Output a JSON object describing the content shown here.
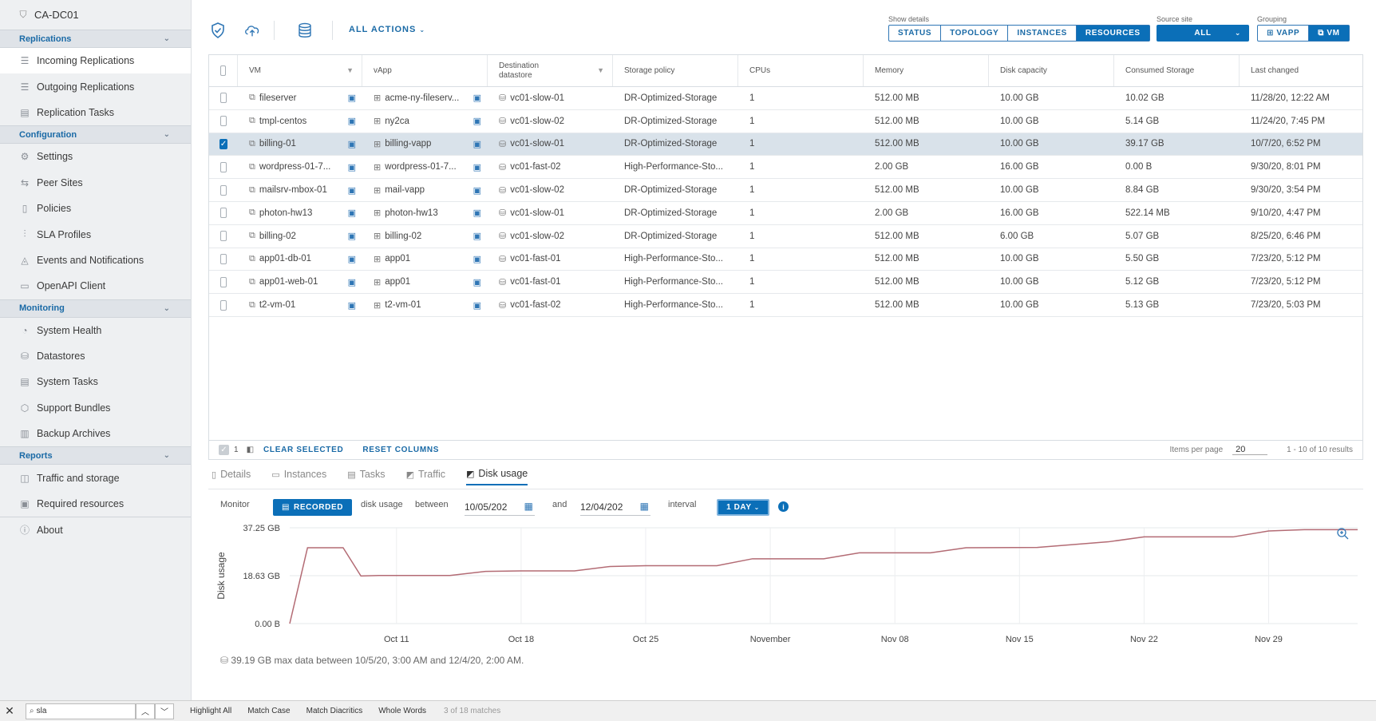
{
  "sidebar": {
    "site_name": "CA-DC01",
    "sections": [
      {
        "label": "Replications",
        "items": [
          "Incoming Replications",
          "Outgoing Replications",
          "Replication Tasks"
        ]
      },
      {
        "label": "Configuration",
        "items": [
          "Settings",
          "Peer Sites",
          "Policies",
          "SLA Profiles",
          "Events and Notifications",
          "OpenAPI Client"
        ]
      },
      {
        "label": "Monitoring",
        "items": [
          "System Health",
          "Datastores",
          "System Tasks",
          "Support Bundles",
          "Backup Archives"
        ]
      },
      {
        "label": "Reports",
        "items": [
          "Traffic and storage",
          "Required resources"
        ]
      }
    ],
    "about": "About",
    "active_item": "Incoming Replications"
  },
  "toolbar": {
    "all_actions": "ALL ACTIONS",
    "show_details_label": "Show details",
    "show_details": [
      "STATUS",
      "TOPOLOGY",
      "INSTANCES",
      "RESOURCES"
    ],
    "show_details_selected": "RESOURCES",
    "source_site_label": "Source site",
    "source_site_value": "ALL",
    "grouping_label": "Grouping",
    "grouping": [
      "VAPP",
      "VM"
    ],
    "grouping_selected": "VM"
  },
  "grid": {
    "columns": [
      "VM",
      "vApp",
      "Destination datastore",
      "Storage policy",
      "CPUs",
      "Memory",
      "Disk capacity",
      "Consumed Storage",
      "Last changed"
    ],
    "rows": [
      {
        "vm": "fileserver",
        "vapp": "acme-ny-fileserv...",
        "datastore": "vc01-slow-01",
        "policy": "DR-Optimized-Storage",
        "cpus": "1",
        "memory": "512.00 MB",
        "disk": "10.00 GB",
        "consumed": "10.02 GB",
        "changed": "11/28/20, 12:22 AM",
        "selected": false
      },
      {
        "vm": "tmpl-centos",
        "vapp": "ny2ca",
        "datastore": "vc01-slow-02",
        "policy": "DR-Optimized-Storage",
        "cpus": "1",
        "memory": "512.00 MB",
        "disk": "10.00 GB",
        "consumed": "5.14 GB",
        "changed": "11/24/20, 7:45 PM",
        "selected": false
      },
      {
        "vm": "billing-01",
        "vapp": "billing-vapp",
        "datastore": "vc01-slow-01",
        "policy": "DR-Optimized-Storage",
        "cpus": "1",
        "memory": "512.00 MB",
        "disk": "10.00 GB",
        "consumed": "39.17 GB",
        "changed": "10/7/20, 6:52 PM",
        "selected": true
      },
      {
        "vm": "wordpress-01-7...",
        "vapp": "wordpress-01-7...",
        "datastore": "vc01-fast-02",
        "policy": "High-Performance-Sto...",
        "cpus": "1",
        "memory": "2.00 GB",
        "disk": "16.00 GB",
        "consumed": "0.00 B",
        "changed": "9/30/20, 8:01 PM",
        "selected": false
      },
      {
        "vm": "mailsrv-mbox-01",
        "vapp": "mail-vapp",
        "datastore": "vc01-slow-02",
        "policy": "DR-Optimized-Storage",
        "cpus": "1",
        "memory": "512.00 MB",
        "disk": "10.00 GB",
        "consumed": "8.84 GB",
        "changed": "9/30/20, 3:54 PM",
        "selected": false
      },
      {
        "vm": "photon-hw13",
        "vapp": "photon-hw13",
        "datastore": "vc01-slow-01",
        "policy": "DR-Optimized-Storage",
        "cpus": "1",
        "memory": "2.00 GB",
        "disk": "16.00 GB",
        "consumed": "522.14 MB",
        "changed": "9/10/20, 4:47 PM",
        "selected": false
      },
      {
        "vm": "billing-02",
        "vapp": "billing-02",
        "datastore": "vc01-slow-02",
        "policy": "DR-Optimized-Storage",
        "cpus": "1",
        "memory": "512.00 MB",
        "disk": "6.00 GB",
        "consumed": "5.07 GB",
        "changed": "8/25/20, 6:46 PM",
        "selected": false
      },
      {
        "vm": "app01-db-01",
        "vapp": "app01",
        "datastore": "vc01-fast-01",
        "policy": "High-Performance-Sto...",
        "cpus": "1",
        "memory": "512.00 MB",
        "disk": "10.00 GB",
        "consumed": "5.50 GB",
        "changed": "7/23/20, 5:12 PM",
        "selected": false
      },
      {
        "vm": "app01-web-01",
        "vapp": "app01",
        "datastore": "vc01-fast-01",
        "policy": "High-Performance-Sto...",
        "cpus": "1",
        "memory": "512.00 MB",
        "disk": "10.00 GB",
        "consumed": "5.12 GB",
        "changed": "7/23/20, 5:12 PM",
        "selected": false
      },
      {
        "vm": "t2-vm-01",
        "vapp": "t2-vm-01",
        "datastore": "vc01-fast-02",
        "policy": "High-Performance-Sto...",
        "cpus": "1",
        "memory": "512.00 MB",
        "disk": "10.00 GB",
        "consumed": "5.13 GB",
        "changed": "7/23/20, 5:03 PM",
        "selected": false
      }
    ],
    "footer": {
      "selected_count": "1",
      "clear_selected": "CLEAR SELECTED",
      "reset_columns": "RESET COLUMNS",
      "items_per_page_label": "Items per page",
      "items_per_page": "20",
      "results": "1 - 10 of 10 results"
    }
  },
  "detail_tabs": [
    "Details",
    "Instances",
    "Tasks",
    "Traffic",
    "Disk usage"
  ],
  "detail_tab_active": "Disk usage",
  "monitor": {
    "monitor_label": "Monitor",
    "recorded": "RECORDED",
    "disk_usage": "disk usage",
    "between": "between",
    "date_from": "10/05/202",
    "and": "and",
    "date_to": "12/04/202",
    "interval_label": "interval",
    "interval_value": "1 DAY"
  },
  "chart_data": {
    "type": "line",
    "xlabel": "",
    "ylabel": "Disk usage",
    "y_ticks": [
      "37.25 GB",
      "18.63 GB",
      "0.00 B"
    ],
    "y_tick_values": [
      37.25,
      18.63,
      0
    ],
    "x_ticks": [
      "Oct 11",
      "Oct 18",
      "Oct 25",
      "November",
      "Nov 08",
      "Nov 15",
      "Nov 22",
      "Nov 29"
    ],
    "x_tick_days": [
      6,
      13,
      20,
      27,
      34,
      41,
      48,
      55
    ],
    "ylim": [
      0,
      37.25
    ],
    "xlim": [
      0,
      60
    ],
    "grid": true,
    "series": [
      {
        "x": [
          0,
          1,
          3,
          4,
          5,
          9,
          11,
          13,
          16,
          18,
          20,
          24,
          26,
          30,
          32,
          36,
          38,
          42,
          46,
          48,
          53,
          55,
          57,
          60
        ],
        "values": [
          0,
          29.5,
          29.5,
          18.5,
          18.7,
          18.7,
          20.3,
          20.5,
          20.5,
          22.2,
          22.5,
          22.5,
          25.2,
          25.2,
          27.5,
          27.5,
          29.5,
          29.6,
          31.8,
          33.7,
          33.7,
          36.0,
          36.5,
          36.5
        ]
      }
    ],
    "summary": "39.19 GB max data between 10/5/20, 3:00 AM and 12/4/20, 2:00 AM."
  },
  "findbar": {
    "query": "sla",
    "options": [
      "Highlight All",
      "Match Case",
      "Match Diacritics",
      "Whole Words"
    ],
    "matches": "3 of 18 matches"
  }
}
